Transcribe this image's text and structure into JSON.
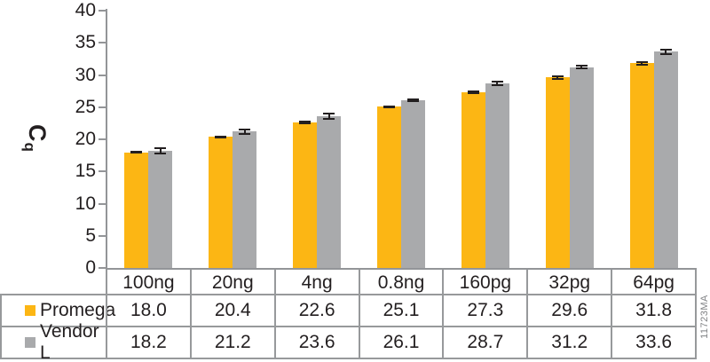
{
  "figure": {
    "ylabel_main": "C",
    "ylabel_sub": "q",
    "watermark": "11723MA"
  },
  "chart_data": {
    "type": "bar",
    "title": "",
    "ylabel": "Cq",
    "xlabel": "",
    "categories": [
      "100ng",
      "20ng",
      "4ng",
      "0.8ng",
      "160pg",
      "32pg",
      "64pg"
    ],
    "series": [
      {
        "name": "Promega",
        "color": "#FCB614",
        "values": [
          18.0,
          20.4,
          22.6,
          25.1,
          27.3,
          29.6,
          31.8
        ],
        "errors": [
          0.25,
          0.2,
          0.25,
          0.2,
          0.25,
          0.3,
          0.3
        ]
      },
      {
        "name": "Vendor L",
        "color": "#A9AAAC",
        "values": [
          18.2,
          21.2,
          23.6,
          26.1,
          28.7,
          31.2,
          33.6
        ],
        "errors": [
          0.55,
          0.45,
          0.5,
          0.3,
          0.45,
          0.35,
          0.5
        ]
      }
    ],
    "ylim": [
      0,
      40
    ],
    "ytick_step": 5,
    "grid": false,
    "error_bars": true,
    "legend_position": "table-left"
  },
  "table": {
    "columns": [
      "100ng",
      "20ng",
      "4ng",
      "0.8ng",
      "160pg",
      "32pg",
      "64pg"
    ],
    "row_labels": [
      "Promega",
      "Vendor L"
    ],
    "rows": [
      [
        "18.0",
        "20.4",
        "22.6",
        "25.1",
        "27.3",
        "29.6",
        "31.8"
      ],
      [
        "18.2",
        "21.2",
        "23.6",
        "26.1",
        "28.7",
        "31.2",
        "33.6"
      ]
    ]
  },
  "colors": {
    "promega_bar": "#FCB614",
    "vendor_bar": "#A9AAAC",
    "table_border": "#97999B",
    "axis": "#939598",
    "text": "#231F20",
    "watermark_text": "#808285"
  }
}
